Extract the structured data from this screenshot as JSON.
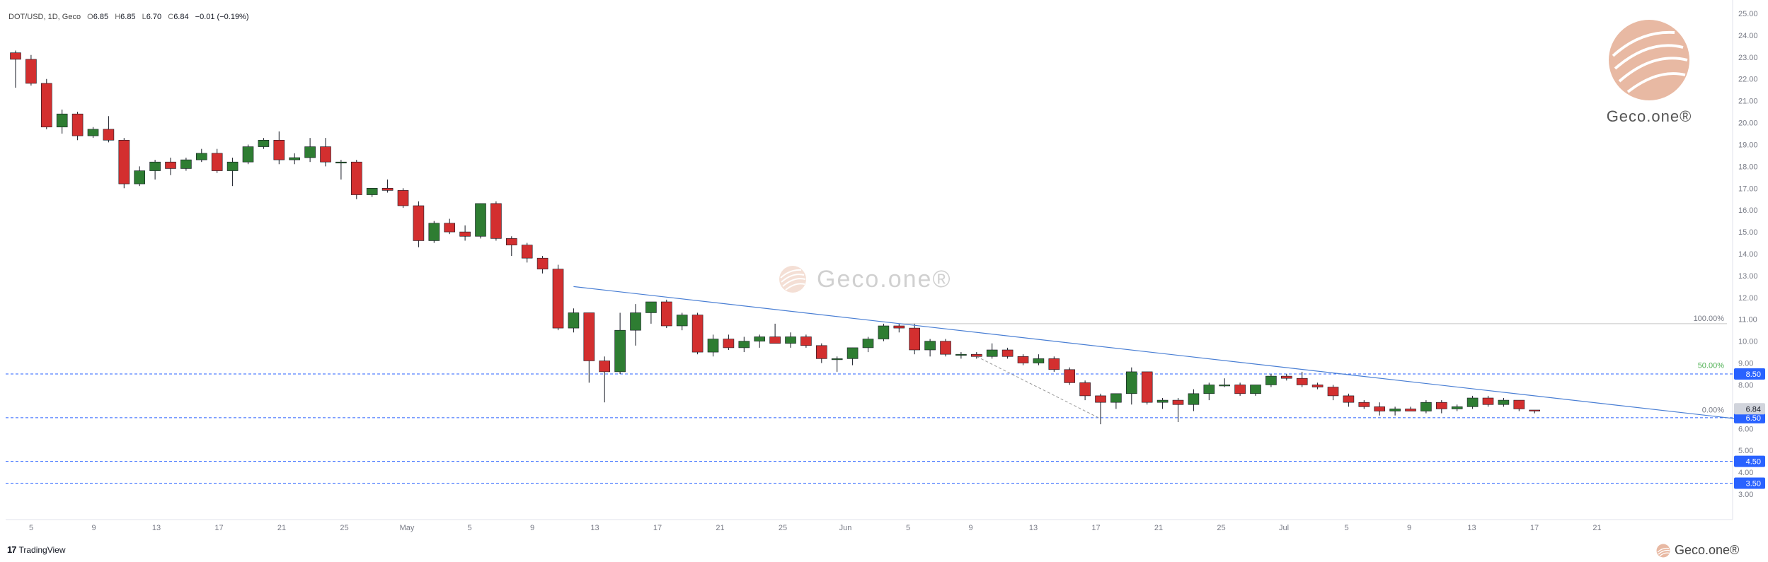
{
  "header": {
    "symbol": "DOT/USD, 1D, Geco",
    "o_label": "O",
    "o_value": "6.85",
    "h_label": "H",
    "h_value": "6.85",
    "l_label": "L",
    "l_value": "6.70",
    "c_label": "C",
    "c_value": "6.84",
    "change": "−0.01 (−0.19%)"
  },
  "branding": {
    "watermark": "Geco.one®",
    "corner": "Geco.one®",
    "bottom": "Geco.one®",
    "platform": "TradingView",
    "platform_logo_text": "17"
  },
  "colors": {
    "up": "#2e7d32",
    "down": "#d32f2f",
    "wick": "#131722",
    "trendline": "#4a7fd4",
    "level_line": "#2962ff",
    "level_badge": "#2962ff",
    "last_price_badge": "#d1d4dc",
    "fib_100": "#787b86",
    "fib_50": "#4caf50",
    "fib_0": "#787b86",
    "grid_text": "#787b86",
    "logo": "#e8b9a3"
  },
  "chart_data": {
    "type": "candlestick",
    "symbol": "DOT/USD",
    "interval": "1D",
    "x_ticks": [
      "5",
      "9",
      "13",
      "17",
      "21",
      "25",
      "May",
      "5",
      "9",
      "13",
      "17",
      "21",
      "25",
      "Jun",
      "5",
      "9",
      "13",
      "17",
      "21",
      "25",
      "Jul",
      "5",
      "9",
      "13",
      "17",
      "21"
    ],
    "y_ticks": [
      "25.00",
      "24.00",
      "23.00",
      "22.00",
      "21.00",
      "20.00",
      "19.00",
      "18.00",
      "17.00",
      "16.00",
      "15.00",
      "14.00",
      "13.00",
      "12.00",
      "11.00",
      "10.00",
      "9.00",
      "8.00",
      "7.00",
      "6.00",
      "5.00",
      "4.00",
      "3.00"
    ],
    "ylim": [
      2.8,
      25.5
    ],
    "candles": [
      [
        23.2,
        23.3,
        21.6,
        22.9
      ],
      [
        22.9,
        23.1,
        21.7,
        21.8
      ],
      [
        21.8,
        22.0,
        19.7,
        19.8
      ],
      [
        19.8,
        20.6,
        19.5,
        20.4
      ],
      [
        20.4,
        20.5,
        19.2,
        19.4
      ],
      [
        19.4,
        19.8,
        19.3,
        19.7
      ],
      [
        19.7,
        20.3,
        19.1,
        19.2
      ],
      [
        19.2,
        19.3,
        17.0,
        17.2
      ],
      [
        17.2,
        18.0,
        17.1,
        17.8
      ],
      [
        17.8,
        18.3,
        17.4,
        18.2
      ],
      [
        18.2,
        18.4,
        17.6,
        17.9
      ],
      [
        17.9,
        18.4,
        17.8,
        18.3
      ],
      [
        18.3,
        18.8,
        18.2,
        18.6
      ],
      [
        18.6,
        18.8,
        17.7,
        17.8
      ],
      [
        17.8,
        18.4,
        17.1,
        18.2
      ],
      [
        18.2,
        19.0,
        18.1,
        18.9
      ],
      [
        18.9,
        19.3,
        18.8,
        19.2
      ],
      [
        19.2,
        19.6,
        18.1,
        18.3
      ],
      [
        18.3,
        18.6,
        18.1,
        18.4
      ],
      [
        18.4,
        19.3,
        18.2,
        18.9
      ],
      [
        18.9,
        19.3,
        18.0,
        18.2
      ],
      [
        18.2,
        18.3,
        17.4,
        18.2
      ],
      [
        18.2,
        18.3,
        16.5,
        16.7
      ],
      [
        16.7,
        17.0,
        16.6,
        17.0
      ],
      [
        17.0,
        17.4,
        16.8,
        16.9
      ],
      [
        16.9,
        17.0,
        16.1,
        16.2
      ],
      [
        16.2,
        16.4,
        14.3,
        14.6
      ],
      [
        14.6,
        15.5,
        14.5,
        15.4
      ],
      [
        15.4,
        15.6,
        14.9,
        15.0
      ],
      [
        15.0,
        15.3,
        14.6,
        14.8
      ],
      [
        14.8,
        16.3,
        14.7,
        16.3
      ],
      [
        16.3,
        16.4,
        14.6,
        14.7
      ],
      [
        14.7,
        14.8,
        13.9,
        14.4
      ],
      [
        14.4,
        14.5,
        13.6,
        13.8
      ],
      [
        13.8,
        13.9,
        13.1,
        13.3
      ],
      [
        13.3,
        13.5,
        10.5,
        10.6
      ],
      [
        10.6,
        11.5,
        10.4,
        11.3
      ],
      [
        11.3,
        11.3,
        8.1,
        9.1
      ],
      [
        9.1,
        9.3,
        7.2,
        8.6
      ],
      [
        8.6,
        11.3,
        8.5,
        10.5
      ],
      [
        10.5,
        11.7,
        9.8,
        11.3
      ],
      [
        11.3,
        11.8,
        10.8,
        11.8
      ],
      [
        11.8,
        11.9,
        10.6,
        10.7
      ],
      [
        10.7,
        11.3,
        10.5,
        11.2
      ],
      [
        11.2,
        11.3,
        9.4,
        9.5
      ],
      [
        9.5,
        10.3,
        9.3,
        10.1
      ],
      [
        10.1,
        10.3,
        9.6,
        9.7
      ],
      [
        9.7,
        10.2,
        9.5,
        10.0
      ],
      [
        10.0,
        10.3,
        9.7,
        10.2
      ],
      [
        10.2,
        10.8,
        9.9,
        9.9
      ],
      [
        9.9,
        10.4,
        9.7,
        10.2
      ],
      [
        10.2,
        10.3,
        9.7,
        9.8
      ],
      [
        9.8,
        9.9,
        9.0,
        9.2
      ],
      [
        9.2,
        9.3,
        8.6,
        9.2
      ],
      [
        9.2,
        9.7,
        8.9,
        9.7
      ],
      [
        9.7,
        10.2,
        9.5,
        10.1
      ],
      [
        10.1,
        10.8,
        10.0,
        10.7
      ],
      [
        10.7,
        10.8,
        10.4,
        10.6
      ],
      [
        10.6,
        10.8,
        9.4,
        9.6
      ],
      [
        9.6,
        10.1,
        9.3,
        10.0
      ],
      [
        10.0,
        10.1,
        9.3,
        9.4
      ],
      [
        9.4,
        9.5,
        9.2,
        9.4
      ],
      [
        9.4,
        9.5,
        9.2,
        9.3
      ],
      [
        9.3,
        9.9,
        9.2,
        9.6
      ],
      [
        9.6,
        9.7,
        9.2,
        9.3
      ],
      [
        9.3,
        9.4,
        8.9,
        9.0
      ],
      [
        9.0,
        9.4,
        8.9,
        9.2
      ],
      [
        9.2,
        9.3,
        8.6,
        8.7
      ],
      [
        8.7,
        8.8,
        8.0,
        8.1
      ],
      [
        8.1,
        8.2,
        7.3,
        7.5
      ],
      [
        7.5,
        7.6,
        6.2,
        7.2
      ],
      [
        7.2,
        7.6,
        6.9,
        7.6
      ],
      [
        7.6,
        8.8,
        7.1,
        8.6
      ],
      [
        8.6,
        8.6,
        7.1,
        7.2
      ],
      [
        7.2,
        7.4,
        6.9,
        7.3
      ],
      [
        7.3,
        7.4,
        6.3,
        7.1
      ],
      [
        7.1,
        7.8,
        6.8,
        7.6
      ],
      [
        7.6,
        8.1,
        7.3,
        8.0
      ],
      [
        8.0,
        8.3,
        7.9,
        8.0
      ],
      [
        8.0,
        8.1,
        7.5,
        7.6
      ],
      [
        7.6,
        8.0,
        7.5,
        8.0
      ],
      [
        8.0,
        8.5,
        7.9,
        8.4
      ],
      [
        8.4,
        8.5,
        8.2,
        8.3
      ],
      [
        8.3,
        8.6,
        7.9,
        8.0
      ],
      [
        8.0,
        8.1,
        7.8,
        7.9
      ],
      [
        7.9,
        8.0,
        7.3,
        7.5
      ],
      [
        7.5,
        7.6,
        7.0,
        7.2
      ],
      [
        7.2,
        7.3,
        6.9,
        7.0
      ],
      [
        7.0,
        7.2,
        6.6,
        6.8
      ],
      [
        6.8,
        7.0,
        6.6,
        6.9
      ],
      [
        6.9,
        7.0,
        6.8,
        6.8
      ],
      [
        6.8,
        7.3,
        6.7,
        7.2
      ],
      [
        7.2,
        7.3,
        6.7,
        6.9
      ],
      [
        6.9,
        7.1,
        6.8,
        7.0
      ],
      [
        7.0,
        7.5,
        6.9,
        7.4
      ],
      [
        7.4,
        7.5,
        7.0,
        7.1
      ],
      [
        7.1,
        7.4,
        7.0,
        7.3
      ],
      [
        7.3,
        7.3,
        6.8,
        6.9
      ],
      [
        6.85,
        6.85,
        6.7,
        6.84
      ]
    ],
    "levels": [
      {
        "price": 8.5,
        "label": "8.50"
      },
      {
        "price": 6.5,
        "label": "6.50"
      },
      {
        "price": 4.5,
        "label": "4.50"
      },
      {
        "price": 3.5,
        "label": "3.50"
      }
    ],
    "last_price": {
      "price": 6.84,
      "label": "6.84"
    },
    "fibonacci": [
      {
        "label": "100.00%",
        "price": 10.8
      },
      {
        "label": "50.00%",
        "price": 8.65
      },
      {
        "label": "0.00%",
        "price": 6.6
      }
    ],
    "trendline": {
      "from": {
        "bar": 36,
        "price": 12.5
      },
      "to": {
        "bar": 111,
        "price": 6.45
      }
    },
    "dashed_segment": {
      "from": {
        "bar": 62,
        "price": 9.3
      },
      "to": {
        "bar": 70,
        "price": 6.45
      }
    }
  }
}
